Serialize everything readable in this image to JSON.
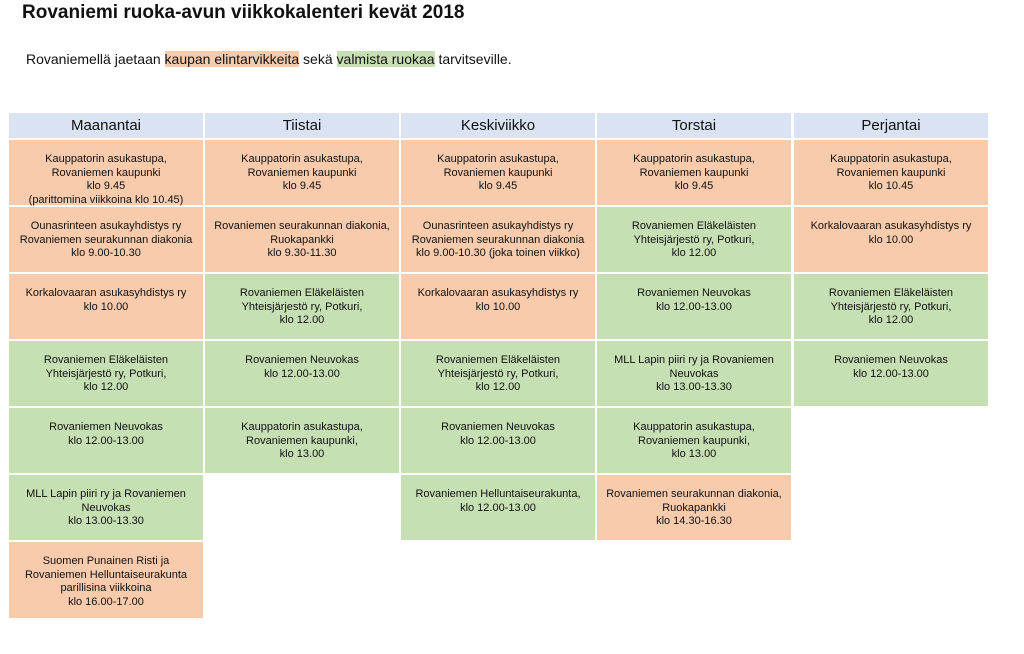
{
  "title": "Rovaniemi ruoka-avun viikkokalenteri kevät 2018",
  "intro": {
    "before": "Rovaniemellä jaetaan ",
    "shop": "kaupan elintarvikkeita",
    "middle": " sekä ",
    "food": "valmista ruokaa",
    "after": " tarvitseville."
  },
  "colors": {
    "shop": "#f8cbad",
    "food": "#c6e0b4",
    "header": "#dae3f3"
  },
  "days": [
    {
      "name": "Maanantai",
      "entries": [
        {
          "type": "shop",
          "text": "Kauppatorin asukastupa,\nRovaniemen kaupunki\nklo 9.45\n(parittomina viikkoina klo 10.45)"
        },
        {
          "type": "shop",
          "text": "Ounasrinteen asukayhdistys ry\nRovaniemen seurakunnan diakonia\nklo 9.00-10.30"
        },
        {
          "type": "shop",
          "text": "Korkalovaaran asukasyhdistys ry\nklo 10.00"
        },
        {
          "type": "food",
          "text": "Rovaniemen Eläkeläisten\nYhteisjärjestö ry, Potkuri,\nklo 12.00"
        },
        {
          "type": "food",
          "text": "Rovaniemen Neuvokas\nklo 12.00-13.00"
        },
        {
          "type": "food",
          "text": "MLL Lapin piiri ry ja Rovaniemen\nNeuvokas\nklo 13.00-13.30"
        },
        {
          "type": "shop",
          "text": "Suomen Punainen Risti ja\nRovaniemen Helluntaiseurakunta\nparillisina viikkoina\nklo 16.00-17.00"
        }
      ]
    },
    {
      "name": "Tiistai",
      "entries": [
        {
          "type": "shop",
          "text": "Kauppatorin asukastupa,\nRovaniemen kaupunki\nklo 9.45"
        },
        {
          "type": "shop",
          "text": "Rovaniemen seurakunnan diakonia,\nRuokapankki\nklo 9.30-11.30"
        },
        {
          "type": "food",
          "text": "Rovaniemen Eläkeläisten\nYhteisjärjestö ry, Potkuri,\nklo 12.00"
        },
        {
          "type": "food",
          "text": "Rovaniemen Neuvokas\nklo 12.00-13.00"
        },
        {
          "type": "food",
          "text": "Kauppatorin asukastupa,\nRovaniemen kaupunki,\nklo 13.00"
        }
      ]
    },
    {
      "name": "Keskiviikko",
      "entries": [
        {
          "type": "shop",
          "text": "Kauppatorin asukastupa,\nRovaniemen kaupunki\nklo 9.45"
        },
        {
          "type": "shop",
          "text": "Ounasrinteen asukayhdistys ry\nRovaniemen seurakunnan diakonia\nklo 9.00-10.30 (joka toinen viikko)"
        },
        {
          "type": "shop",
          "text": "Korkalovaaran asukasyhdistys ry\nklo 10.00"
        },
        {
          "type": "food",
          "text": "Rovaniemen Eläkeläisten\nYhteisjärjestö ry, Potkuri,\nklo 12.00"
        },
        {
          "type": "food",
          "text": "Rovaniemen Neuvokas\nklo 12.00-13.00"
        },
        {
          "type": "food",
          "text": "Rovaniemen Helluntaiseurakunta,\nklo 12.00-13.00"
        }
      ]
    },
    {
      "name": "Torstai",
      "entries": [
        {
          "type": "shop",
          "text": "Kauppatorin asukastupa,\nRovaniemen kaupunki\nklo 9.45"
        },
        {
          "type": "food",
          "text": "Rovaniemen Eläkeläisten\nYhteisjärjestö ry, Potkuri,\nklo 12.00"
        },
        {
          "type": "food",
          "text": "Rovaniemen Neuvokas\nklo 12.00-13.00"
        },
        {
          "type": "food",
          "text": "MLL Lapin piiri ry ja Rovaniemen\nNeuvokas\nklo 13.00-13.30"
        },
        {
          "type": "food",
          "text": "Kauppatorin asukastupa,\nRovaniemen kaupunki,\nklo 13.00"
        },
        {
          "type": "shop",
          "text": "Rovaniemen seurakunnan diakonia,\nRuokapankki\nklo 14.30-16.30"
        }
      ]
    },
    {
      "name": "Perjantai",
      "entries": [
        {
          "type": "shop",
          "text": "Kauppatorin asukastupa,\nRovaniemen kaupunki\nklo 10.45"
        },
        {
          "type": "shop",
          "text": "Korkalovaaran asukasyhdistys ry\nklo 10.00"
        },
        {
          "type": "food",
          "text": "Rovaniemen Eläkeläisten\nYhteisjärjestö ry, Potkuri,\nklo 12.00"
        },
        {
          "type": "food",
          "text": "Rovaniemen Neuvokas\nklo 12.00-13.00"
        }
      ]
    }
  ]
}
